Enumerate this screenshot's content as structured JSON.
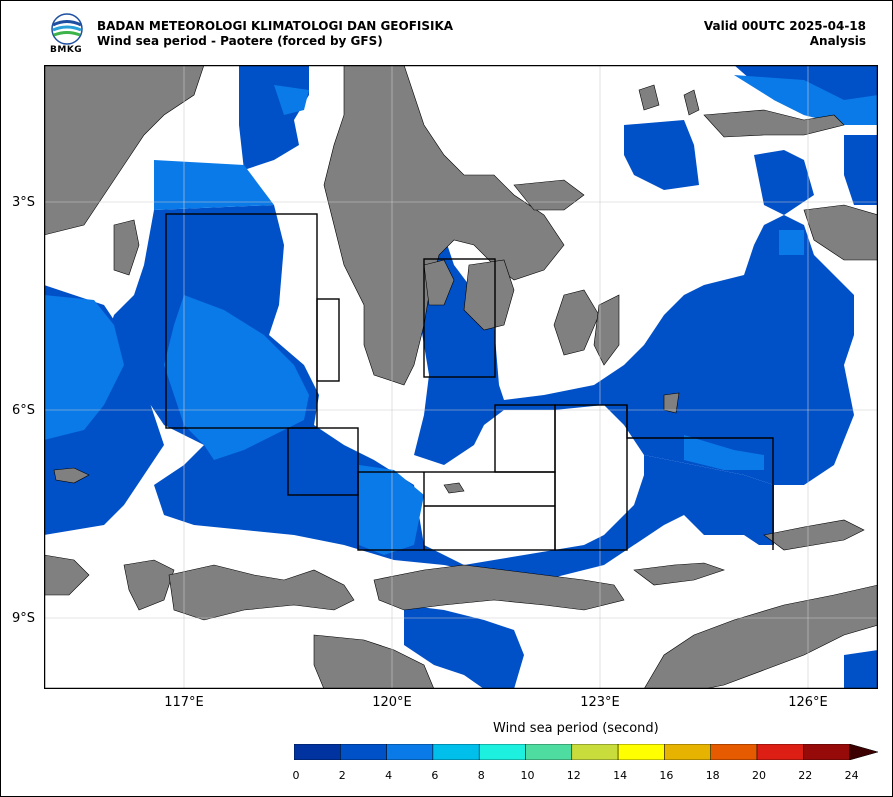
{
  "header": {
    "org": "BADAN METEOROLOGI KLIMATOLOGI DAN GEOFISIKA",
    "product": "Wind sea period - Paotere (forced by GFS)",
    "valid": "Valid 00UTC 2025-04-18",
    "analysis": "Analysis",
    "logo_text": "BMKG"
  },
  "axes": {
    "lat_labels": [
      "3°S",
      "6°S",
      "9°S"
    ],
    "lon_labels": [
      "117°E",
      "120°E",
      "123°E",
      "126°E"
    ]
  },
  "colorbar": {
    "title": "Wind sea period (second)",
    "ticks": [
      "0",
      "2",
      "4",
      "6",
      "8",
      "10",
      "12",
      "14",
      "16",
      "18",
      "20",
      "22",
      "24"
    ],
    "colors": [
      "#0033a0",
      "#0050c8",
      "#0a7ae8",
      "#00bfea",
      "#1ef0e0",
      "#4fdca0",
      "#c8dc3c",
      "#ffff00",
      "#e6b400",
      "#e65a00",
      "#dc1e14",
      "#960a0a"
    ],
    "extend_color": "#3c0000"
  },
  "colors": {
    "land": "#808080",
    "blue_dark": "#0050c8",
    "blue_mid": "#0a7ae8"
  }
}
